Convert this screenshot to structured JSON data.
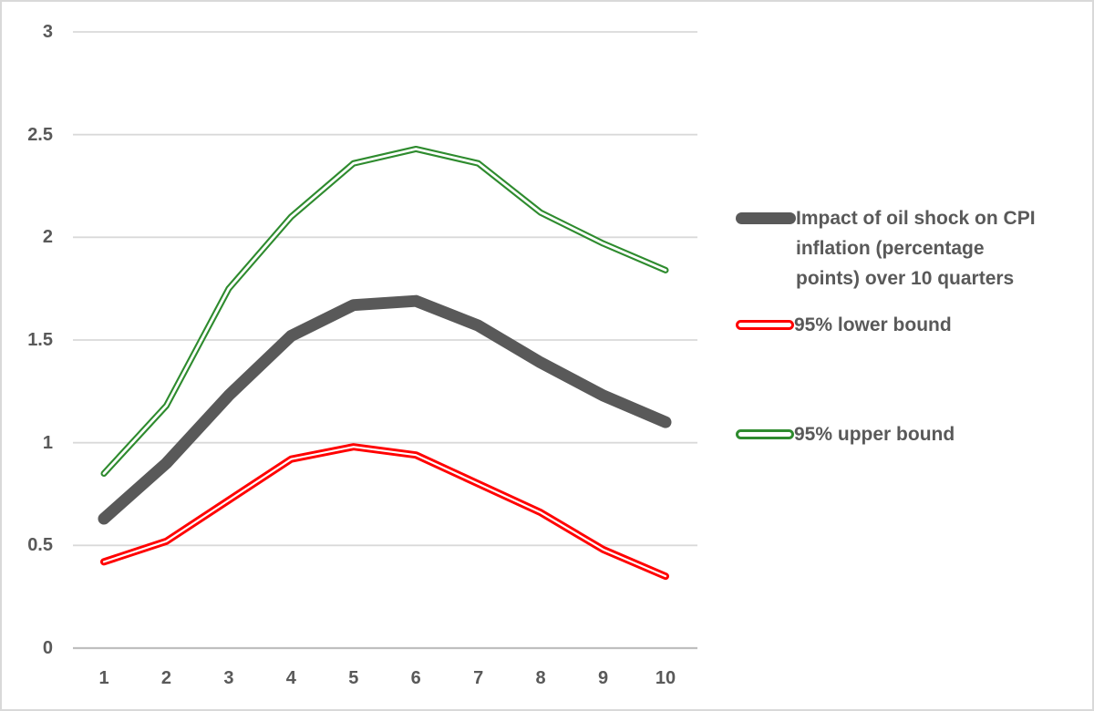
{
  "colors": {
    "series_impact": "#595959",
    "series_lower": "#FF0000",
    "series_upper": "#2E8B2E",
    "gridline": "#D9D9D9",
    "axis_line": "#BFBFBF",
    "text": "#595959",
    "background": "#FFFFFF",
    "border": "#D9D9D9"
  },
  "legend": {
    "items": [
      {
        "label": "Impact of oil shock on CPI inflation (percentage points) over 10 quarters",
        "lines": [
          "Impact of oil shock on CPI",
          "inflation (percentage",
          "points) over 10 quarters"
        ],
        "marker": "thick-gray-line"
      },
      {
        "label": "95% lower bound",
        "lines": [
          "95% lower bound"
        ],
        "marker": "red-outline-line"
      },
      {
        "label": "95% upper bound",
        "lines": [
          "95% upper bound"
        ],
        "marker": "green-outline-line"
      }
    ]
  },
  "chart_data": {
    "type": "line",
    "title": "",
    "xlabel": "",
    "ylabel": "",
    "x": [
      1,
      2,
      3,
      4,
      5,
      6,
      7,
      8,
      9,
      10
    ],
    "x_labels": [
      "1",
      "2",
      "3",
      "4",
      "5",
      "6",
      "7",
      "8",
      "9",
      "10"
    ],
    "ylim": [
      0,
      3
    ],
    "yticks": [
      0,
      0.5,
      1,
      1.5,
      2,
      2.5,
      3
    ],
    "ytick_labels": [
      "0",
      "0.5",
      "1",
      "1.5",
      "2",
      "2.5",
      "3"
    ],
    "grid": true,
    "legend_position": "right",
    "series": [
      {
        "name": "95% upper bound",
        "color": "#2E8B2E",
        "line_width": 7,
        "white_core_width": 2.8,
        "marker_style": "outline",
        "values": [
          0.85,
          1.18,
          1.75,
          2.1,
          2.36,
          2.43,
          2.36,
          2.12,
          1.97,
          1.84
        ]
      },
      {
        "name": "Impact of oil shock on CPI inflation (percentage points) over 10 quarters",
        "color": "#595959",
        "line_width": 13,
        "white_core_width": 0,
        "marker_style": "solid",
        "values": [
          0.63,
          0.9,
          1.23,
          1.52,
          1.67,
          1.69,
          1.57,
          1.39,
          1.23,
          1.1
        ]
      },
      {
        "name": "95% lower bound",
        "color": "#FF0000",
        "line_width": 8,
        "white_core_width": 2.2,
        "marker_style": "outline",
        "values": [
          0.42,
          0.52,
          0.72,
          0.92,
          0.98,
          0.94,
          0.8,
          0.66,
          0.48,
          0.35
        ]
      }
    ]
  }
}
